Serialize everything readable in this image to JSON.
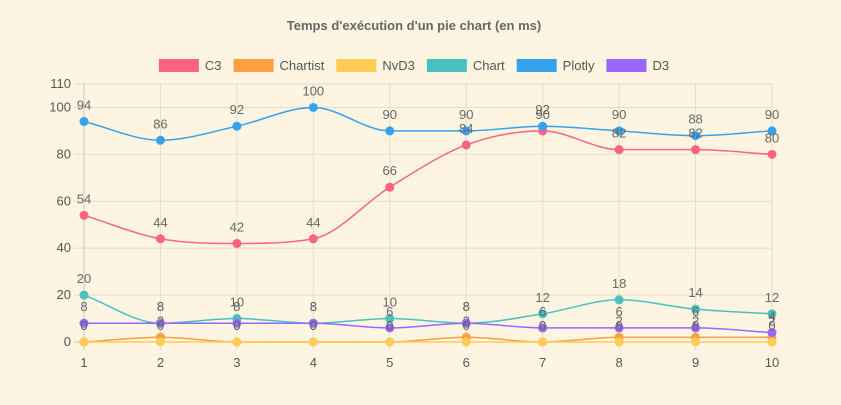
{
  "chart_data": {
    "type": "line",
    "title": "Temps d'exécution d'un pie chart (en ms)",
    "xlabel": "",
    "ylabel": "",
    "categories": [
      "1",
      "2",
      "3",
      "4",
      "5",
      "6",
      "7",
      "8",
      "9",
      "10"
    ],
    "ylim": [
      0,
      110
    ],
    "yticks": [
      0,
      20,
      40,
      60,
      80,
      100,
      110
    ],
    "grid": true,
    "legend_position": "top",
    "series": [
      {
        "name": "C3",
        "color": "#ff6384",
        "values": [
          54,
          44,
          42,
          44,
          66,
          84,
          90,
          82,
          82,
          80
        ]
      },
      {
        "name": "Chartist",
        "color": "#ff9f40",
        "values": [
          0,
          2,
          0,
          0,
          0,
          2,
          0,
          2,
          2,
          2
        ]
      },
      {
        "name": "NvD3",
        "color": "#ffcd56",
        "values": [
          0,
          0,
          0,
          0,
          0,
          0,
          0,
          0,
          0,
          0
        ]
      },
      {
        "name": "Chart",
        "color": "#4bc0c0",
        "values": [
          20,
          8,
          10,
          8,
          10,
          8,
          12,
          18,
          14,
          12
        ]
      },
      {
        "name": "Plotly",
        "color": "#36a2eb",
        "values": [
          94,
          86,
          92,
          100,
          90,
          90,
          92,
          90,
          88,
          90
        ]
      },
      {
        "name": "D3",
        "color": "#9966ff",
        "values": [
          8,
          8,
          8,
          8,
          6,
          8,
          6,
          6,
          6,
          4
        ]
      }
    ]
  }
}
